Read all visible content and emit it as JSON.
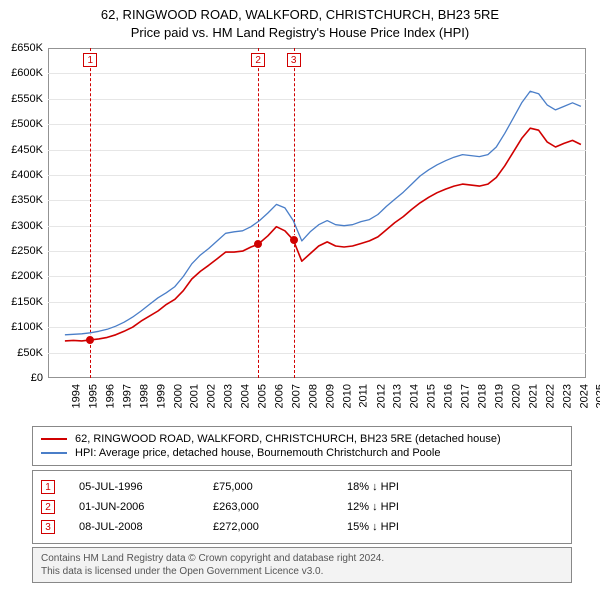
{
  "title_line1": "62, RINGWOOD ROAD, WALKFORD, CHRISTCHURCH, BH23 5RE",
  "title_line2": "Price paid vs. HM Land Registry's House Price Index (HPI)",
  "chart": {
    "type": "line",
    "background_color": "#ffffff",
    "grid_color": "#e6e6e6",
    "border_color": "#939393",
    "x_min": 1994,
    "x_max": 2025.8,
    "y_min": 0,
    "y_max": 650000,
    "y_ticks": [
      0,
      50000,
      100000,
      150000,
      200000,
      250000,
      300000,
      350000,
      400000,
      450000,
      500000,
      550000,
      600000,
      650000
    ],
    "y_tick_labels": [
      "£0",
      "£50K",
      "£100K",
      "£150K",
      "£200K",
      "£250K",
      "£300K",
      "£350K",
      "£400K",
      "£450K",
      "£500K",
      "£550K",
      "£600K",
      "£650K"
    ],
    "x_ticks": [
      1994,
      1995,
      1996,
      1997,
      1998,
      1999,
      2000,
      2001,
      2002,
      2003,
      2004,
      2005,
      2006,
      2007,
      2008,
      2009,
      2010,
      2011,
      2012,
      2013,
      2014,
      2015,
      2016,
      2017,
      2018,
      2019,
      2020,
      2021,
      2022,
      2023,
      2024,
      2025
    ],
    "label_fontsize": 11,
    "series": [
      {
        "name": "62, RINGWOOD ROAD, WALKFORD, CHRISTCHURCH, BH23 5RE (detached house)",
        "color": "#d00000",
        "line_width": 1.6,
        "data": [
          [
            1995.0,
            73000
          ],
          [
            1995.5,
            74000
          ],
          [
            1996.0,
            73000
          ],
          [
            1996.5,
            75000
          ],
          [
            1997.0,
            77000
          ],
          [
            1997.5,
            80000
          ],
          [
            1998.0,
            85000
          ],
          [
            1998.5,
            92000
          ],
          [
            1999.0,
            100000
          ],
          [
            1999.5,
            112000
          ],
          [
            2000.0,
            122000
          ],
          [
            2000.5,
            132000
          ],
          [
            2001.0,
            145000
          ],
          [
            2001.5,
            155000
          ],
          [
            2002.0,
            172000
          ],
          [
            2002.5,
            195000
          ],
          [
            2003.0,
            210000
          ],
          [
            2003.5,
            222000
          ],
          [
            2004.0,
            235000
          ],
          [
            2004.5,
            248000
          ],
          [
            2005.0,
            248000
          ],
          [
            2005.5,
            250000
          ],
          [
            2006.0,
            258000
          ],
          [
            2006.4,
            263000
          ],
          [
            2007.0,
            280000
          ],
          [
            2007.5,
            298000
          ],
          [
            2008.0,
            290000
          ],
          [
            2008.5,
            272000
          ],
          [
            2009.0,
            230000
          ],
          [
            2009.5,
            245000
          ],
          [
            2010.0,
            260000
          ],
          [
            2010.5,
            268000
          ],
          [
            2011.0,
            260000
          ],
          [
            2011.5,
            258000
          ],
          [
            2012.0,
            260000
          ],
          [
            2012.5,
            265000
          ],
          [
            2013.0,
            270000
          ],
          [
            2013.5,
            278000
          ],
          [
            2014.0,
            292000
          ],
          [
            2014.5,
            306000
          ],
          [
            2015.0,
            318000
          ],
          [
            2015.5,
            332000
          ],
          [
            2016.0,
            345000
          ],
          [
            2016.5,
            356000
          ],
          [
            2017.0,
            365000
          ],
          [
            2017.5,
            372000
          ],
          [
            2018.0,
            378000
          ],
          [
            2018.5,
            382000
          ],
          [
            2019.0,
            380000
          ],
          [
            2019.5,
            378000
          ],
          [
            2020.0,
            382000
          ],
          [
            2020.5,
            395000
          ],
          [
            2021.0,
            418000
          ],
          [
            2021.5,
            445000
          ],
          [
            2022.0,
            472000
          ],
          [
            2022.5,
            492000
          ],
          [
            2023.0,
            488000
          ],
          [
            2023.5,
            465000
          ],
          [
            2024.0,
            455000
          ],
          [
            2024.5,
            462000
          ],
          [
            2025.0,
            468000
          ],
          [
            2025.5,
            460000
          ]
        ]
      },
      {
        "name": "HPI: Average price, detached house, Bournemouth Christchurch and Poole",
        "color": "#4a7ec8",
        "line_width": 1.3,
        "data": [
          [
            1995.0,
            85000
          ],
          [
            1995.5,
            86000
          ],
          [
            1996.0,
            87000
          ],
          [
            1996.5,
            89000
          ],
          [
            1997.0,
            92000
          ],
          [
            1997.5,
            96000
          ],
          [
            1998.0,
            102000
          ],
          [
            1998.5,
            110000
          ],
          [
            1999.0,
            120000
          ],
          [
            1999.5,
            132000
          ],
          [
            2000.0,
            145000
          ],
          [
            2000.5,
            158000
          ],
          [
            2001.0,
            168000
          ],
          [
            2001.5,
            180000
          ],
          [
            2002.0,
            200000
          ],
          [
            2002.5,
            225000
          ],
          [
            2003.0,
            242000
          ],
          [
            2003.5,
            255000
          ],
          [
            2004.0,
            270000
          ],
          [
            2004.5,
            285000
          ],
          [
            2005.0,
            288000
          ],
          [
            2005.5,
            290000
          ],
          [
            2006.0,
            298000
          ],
          [
            2006.5,
            310000
          ],
          [
            2007.0,
            325000
          ],
          [
            2007.5,
            342000
          ],
          [
            2008.0,
            335000
          ],
          [
            2008.5,
            310000
          ],
          [
            2009.0,
            270000
          ],
          [
            2009.5,
            288000
          ],
          [
            2010.0,
            302000
          ],
          [
            2010.5,
            310000
          ],
          [
            2011.0,
            302000
          ],
          [
            2011.5,
            300000
          ],
          [
            2012.0,
            302000
          ],
          [
            2012.5,
            308000
          ],
          [
            2013.0,
            312000
          ],
          [
            2013.5,
            322000
          ],
          [
            2014.0,
            338000
          ],
          [
            2014.5,
            352000
          ],
          [
            2015.0,
            366000
          ],
          [
            2015.5,
            382000
          ],
          [
            2016.0,
            398000
          ],
          [
            2016.5,
            410000
          ],
          [
            2017.0,
            420000
          ],
          [
            2017.5,
            428000
          ],
          [
            2018.0,
            435000
          ],
          [
            2018.5,
            440000
          ],
          [
            2019.0,
            438000
          ],
          [
            2019.5,
            436000
          ],
          [
            2020.0,
            440000
          ],
          [
            2020.5,
            455000
          ],
          [
            2021.0,
            482000
          ],
          [
            2021.5,
            512000
          ],
          [
            2022.0,
            542000
          ],
          [
            2022.5,
            565000
          ],
          [
            2023.0,
            560000
          ],
          [
            2023.5,
            538000
          ],
          [
            2024.0,
            528000
          ],
          [
            2024.5,
            535000
          ],
          [
            2025.0,
            542000
          ],
          [
            2025.5,
            535000
          ]
        ]
      }
    ],
    "markers": [
      {
        "n": "1",
        "x": 1996.5,
        "y": 75000
      },
      {
        "n": "2",
        "x": 2006.42,
        "y": 263000
      },
      {
        "n": "3",
        "x": 2008.52,
        "y": 272000
      }
    ]
  },
  "legend": {
    "s1": {
      "color": "#d00000",
      "label": "62, RINGWOOD ROAD, WALKFORD, CHRISTCHURCH, BH23 5RE (detached house)"
    },
    "s2": {
      "color": "#4a7ec8",
      "label": "HPI: Average price, detached house, Bournemouth Christchurch and Poole"
    }
  },
  "events": [
    {
      "n": "1",
      "date": "05-JUL-1996",
      "price": "£75,000",
      "delta": "18% ↓ HPI"
    },
    {
      "n": "2",
      "date": "01-JUN-2006",
      "price": "£263,000",
      "delta": "12% ↓ HPI"
    },
    {
      "n": "3",
      "date": "08-JUL-2008",
      "price": "£272,000",
      "delta": "15% ↓ HPI"
    }
  ],
  "footer_line1": "Contains HM Land Registry data © Crown copyright and database right 2024.",
  "footer_line2": "This data is licensed under the Open Government Licence v3.0."
}
